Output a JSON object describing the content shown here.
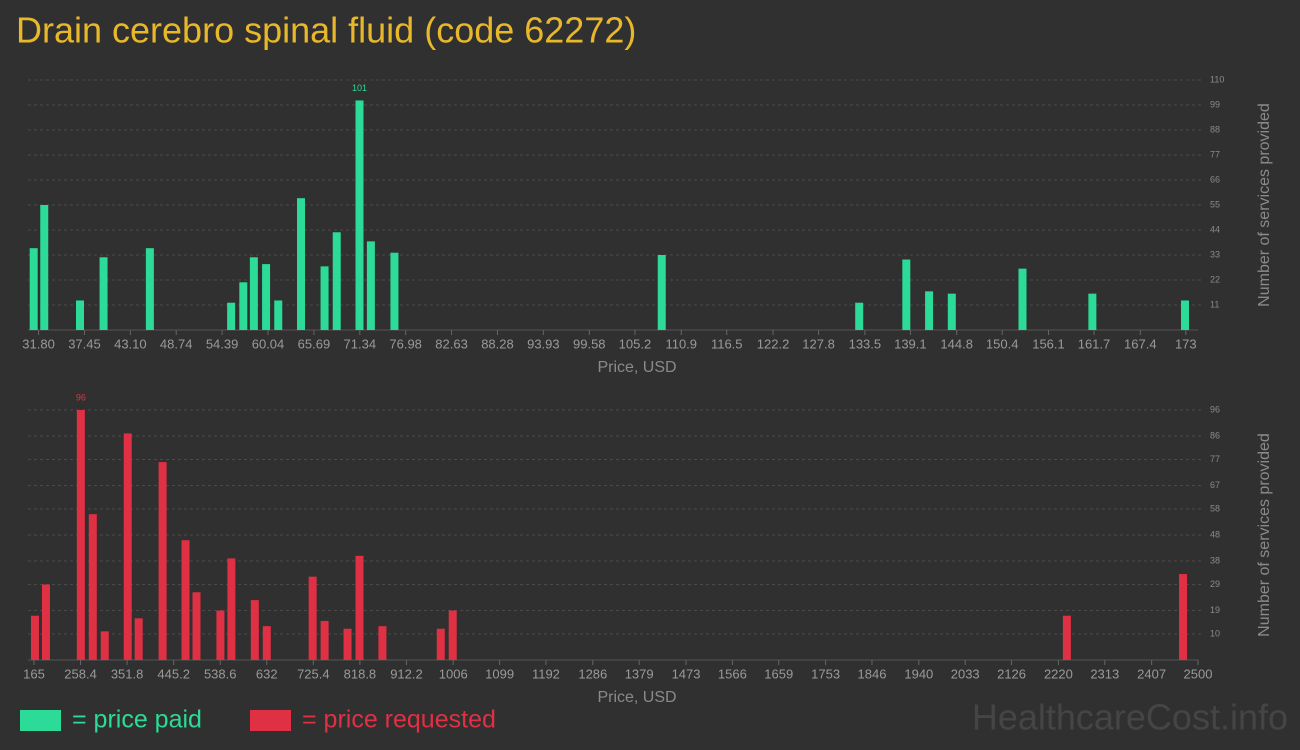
{
  "title": "Drain cerebro spinal fluid (code 62272)",
  "chart_data": [
    {
      "type": "bar",
      "x": [
        31.2,
        32.5,
        36.9,
        39.8,
        45.5,
        55.5,
        57.0,
        58.3,
        59.8,
        61.3,
        64.1,
        67.0,
        68.5,
        71.3,
        72.7,
        75.6,
        108.5,
        132.8,
        138.6,
        141.4,
        144.2,
        152.9,
        161.5,
        172.9
      ],
      "series": [
        {
          "name": "= price paid",
          "color": "#2bdb97",
          "values": [
            36,
            55,
            13,
            32,
            36,
            12,
            21,
            32,
            29,
            13,
            58,
            28,
            43,
            101,
            39,
            34,
            33,
            12,
            31,
            17,
            16,
            27,
            16,
            13
          ]
        }
      ],
      "xlim": [
        30.5,
        174.5
      ],
      "xticks": [
        {
          "value": 31.8,
          "label": "31.80"
        },
        37.45,
        {
          "value": 43.1,
          "label": "43.10"
        },
        48.74,
        54.39,
        60.04,
        65.69,
        71.34,
        76.98,
        82.63,
        88.28,
        93.93,
        99.58,
        105.2,
        110.9,
        116.5,
        122.2,
        127.8,
        133.5,
        139.1,
        144.8,
        150.4,
        156.1,
        161.7,
        167.4,
        173
      ],
      "ylim": [
        0,
        110
      ],
      "yticks": [
        11,
        22,
        33,
        44,
        55,
        66,
        77,
        88,
        99,
        110
      ],
      "x_label": "Price, USD",
      "y_label": "Number of services provided",
      "grid": true
    },
    {
      "type": "bar",
      "x": [
        167,
        189,
        259,
        283,
        307,
        353,
        375,
        423,
        469,
        491,
        539,
        561,
        608,
        632,
        724,
        748,
        794,
        818,
        864,
        981,
        1005,
        2237,
        2470
      ],
      "series": [
        {
          "name": "= price requested",
          "color": "#e03044",
          "values": [
            17,
            29,
            96,
            56,
            11,
            87,
            16,
            76,
            46,
            26,
            19,
            39,
            23,
            13,
            32,
            15,
            12,
            40,
            13,
            12,
            19,
            17,
            33
          ]
        }
      ],
      "xlim": [
        153,
        2500
      ],
      "xticks": [
        165,
        258.4,
        351.8,
        445.2,
        538.6,
        632,
        725.4,
        818.8,
        912.2,
        1006,
        1099,
        1192,
        1286,
        1379,
        1473,
        1566,
        1659,
        1753,
        1846,
        1940,
        2033,
        2126,
        2220,
        2313,
        2407,
        2500
      ],
      "ylim": [
        0,
        96
      ],
      "yticks": [
        10,
        19,
        29,
        38,
        48,
        58,
        67,
        77,
        86,
        96
      ],
      "x_label": "Price, USD",
      "y_label": "Number of services provided",
      "grid": true
    }
  ],
  "watermark": "HealthcareCost.info"
}
